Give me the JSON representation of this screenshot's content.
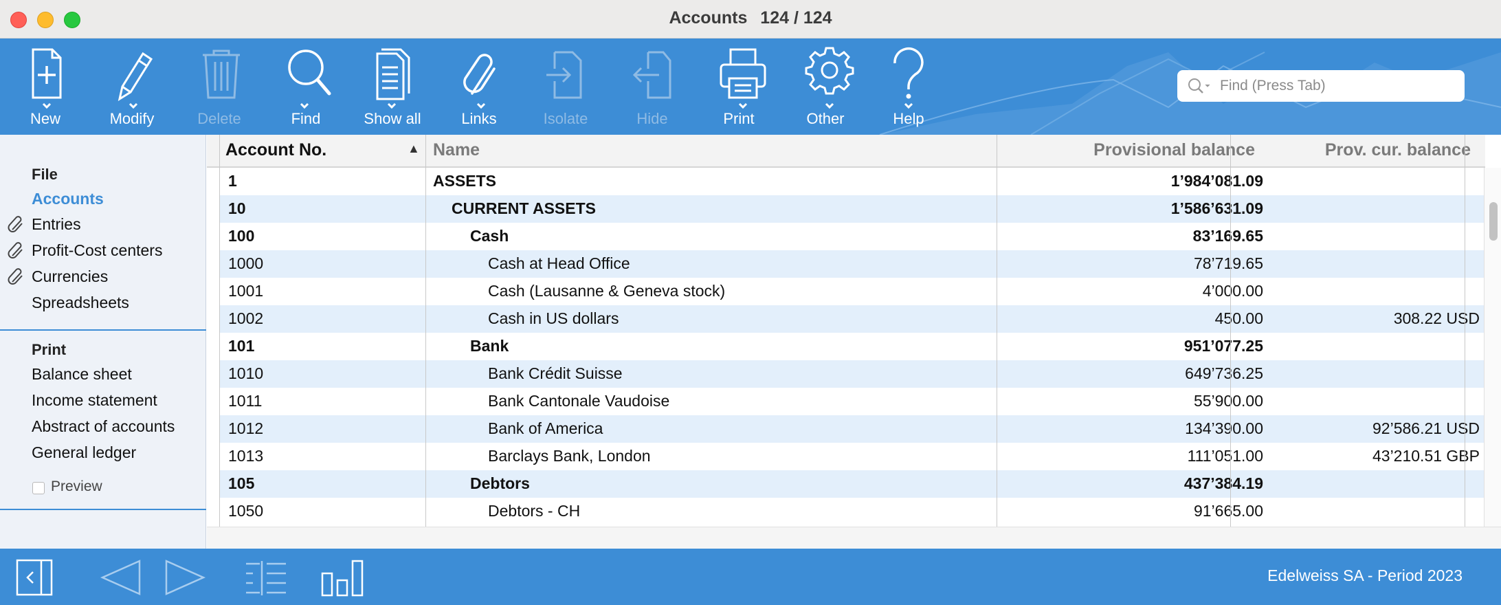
{
  "window": {
    "title": "Accounts",
    "counter": "124 / 124"
  },
  "toolbar": {
    "buttons": [
      {
        "label": "New",
        "icon": "new-document-icon",
        "enabled": true
      },
      {
        "label": "Modify",
        "icon": "pencil-icon",
        "enabled": true
      },
      {
        "label": "Delete",
        "icon": "trash-icon",
        "enabled": false
      },
      {
        "label": "Find",
        "icon": "magnifier-icon",
        "enabled": true
      },
      {
        "label": "Show all",
        "icon": "document-list-icon",
        "enabled": true
      },
      {
        "label": "Links",
        "icon": "paperclip-icon",
        "enabled": true
      },
      {
        "label": "Isolate",
        "icon": "isolate-icon",
        "enabled": false
      },
      {
        "label": "Hide",
        "icon": "hide-icon",
        "enabled": false
      },
      {
        "label": "Print",
        "icon": "printer-icon",
        "enabled": true
      },
      {
        "label": "Other",
        "icon": "gear-icon",
        "enabled": true
      },
      {
        "label": "Help",
        "icon": "question-icon",
        "enabled": true
      }
    ],
    "search_placeholder": "Find (Press Tab)"
  },
  "sidebar": {
    "file_heading": "File",
    "file_items": [
      {
        "label": "Accounts",
        "active": true,
        "linked": false
      },
      {
        "label": "Entries",
        "active": false,
        "linked": true
      },
      {
        "label": "Profit-Cost centers",
        "active": false,
        "linked": true
      },
      {
        "label": "Currencies",
        "active": false,
        "linked": true
      },
      {
        "label": "Spreadsheets",
        "active": false,
        "linked": false
      }
    ],
    "print_heading": "Print",
    "print_items": [
      "Balance sheet",
      "Income statement",
      "Abstract of accounts",
      "General ledger"
    ],
    "preview_label": "Preview"
  },
  "table": {
    "columns": [
      "Account No.",
      "Name",
      "Provisional balance",
      "Prov. cur. balance"
    ],
    "rows": [
      {
        "account": "1",
        "name": "ASSETS",
        "balance": "1’984’081.09",
        "cur": "",
        "level": 0,
        "bold": true
      },
      {
        "account": "10",
        "name": "CURRENT ASSETS",
        "balance": "1’586’631.09",
        "cur": "",
        "level": 1,
        "bold": true
      },
      {
        "account": "100",
        "name": "Cash",
        "balance": "83’169.65",
        "cur": "",
        "level": 2,
        "bold": true
      },
      {
        "account": "1000",
        "name": "Cash at Head Office",
        "balance": "78’719.65",
        "cur": "",
        "level": 3,
        "bold": false
      },
      {
        "account": "1001",
        "name": "Cash (Lausanne & Geneva stock)",
        "balance": "4’000.00",
        "cur": "",
        "level": 3,
        "bold": false
      },
      {
        "account": "1002",
        "name": "Cash in US dollars",
        "balance": "450.00",
        "cur": "308.22 USD",
        "level": 3,
        "bold": false
      },
      {
        "account": "101",
        "name": "Bank",
        "balance": "951’077.25",
        "cur": "",
        "level": 2,
        "bold": true
      },
      {
        "account": "1010",
        "name": "Bank Crédit Suisse",
        "balance": "649’736.25",
        "cur": "",
        "level": 3,
        "bold": false
      },
      {
        "account": "1011",
        "name": "Bank Cantonale Vaudoise",
        "balance": "55’900.00",
        "cur": "",
        "level": 3,
        "bold": false
      },
      {
        "account": "1012",
        "name": "Bank of America",
        "balance": "134’390.00",
        "cur": "92’586.21 USD",
        "level": 3,
        "bold": false
      },
      {
        "account": "1013",
        "name": "Barclays Bank, London",
        "balance": "111’051.00",
        "cur": "43’210.51 GBP",
        "level": 3,
        "bold": false
      },
      {
        "account": "105",
        "name": "Debtors",
        "balance": "437’384.19",
        "cur": "",
        "level": 2,
        "bold": true
      },
      {
        "account": "1050",
        "name": "Debtors - CH",
        "balance": "91’665.00",
        "cur": "",
        "level": 3,
        "bold": false
      }
    ]
  },
  "statusbar": {
    "text": "Edelweiss SA - Period 2023"
  },
  "colors": {
    "accent": "#3d8dd6",
    "row_alt": "#e3effb",
    "header_name": "#7a7a7a",
    "header_balance": "#7a7a7a"
  }
}
